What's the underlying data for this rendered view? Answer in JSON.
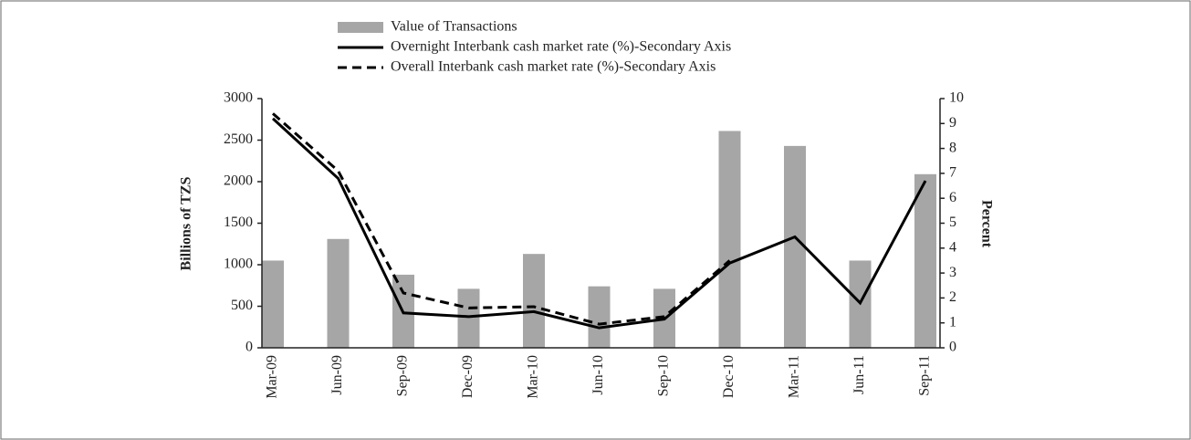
{
  "chart_data": {
    "type": "bar_line",
    "categories": [
      "Mar-09",
      "Jun-09",
      "Sep-09",
      "Dec-09",
      "Mar-10",
      "Jun-10",
      "Sep-10",
      "Dec-10",
      "Mar-11",
      "Jun-11",
      "Sep-11"
    ],
    "series": [
      {
        "name": "Value of Transactions",
        "color": "#a6a6a6",
        "type": "bar",
        "values": [
          1050,
          1310,
          880,
          710,
          1130,
          740,
          710,
          2610,
          2430,
          1050,
          2090
        ]
      },
      {
        "name": "Overnight Interbank cash market rate (%)-Secondary Axis",
        "color": "#000000",
        "type": "line",
        "axis": "y2",
        "dash": false,
        "values": [
          9.2,
          6.8,
          1.4,
          1.25,
          1.45,
          0.8,
          1.15,
          3.4,
          4.45,
          1.8,
          6.7
        ]
      },
      {
        "name": "Overall Interbank cash market rate (%)-Secondary Axis",
        "color": "#000000",
        "type": "line",
        "axis": "y2",
        "dash": true,
        "values": [
          9.4,
          7.1,
          2.2,
          1.6,
          1.65,
          0.95,
          1.25,
          3.5,
          null,
          null,
          null
        ]
      }
    ],
    "ylabel": "Billions of TZS",
    "y2label": "Percent",
    "ylim": [
      0,
      3000
    ],
    "yticks": [
      0,
      500,
      1000,
      1500,
      2000,
      2500,
      3000
    ],
    "y2lim": [
      0,
      10
    ],
    "y2ticks": [
      0,
      1,
      2,
      3,
      4,
      5,
      6,
      7,
      8,
      9,
      10
    ],
    "legend": "top"
  }
}
